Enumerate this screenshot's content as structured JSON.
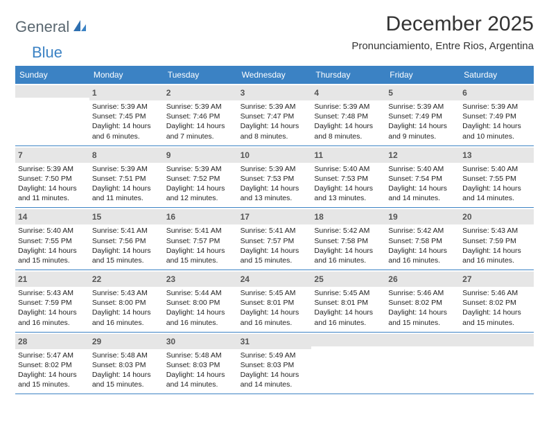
{
  "logo": {
    "part1": "General",
    "part2": "Blue"
  },
  "title": "December 2025",
  "subtitle": "Pronunciamiento, Entre Rios, Argentina",
  "colors": {
    "header_bg": "#3b82c4",
    "header_text": "#ffffff",
    "daynum_bg": "#e6e6e6",
    "rule": "#3b82c4",
    "logo_gray": "#5a6770",
    "logo_blue": "#3b82c4",
    "text": "#222222",
    "background": "#ffffff"
  },
  "day_names": [
    "Sunday",
    "Monday",
    "Tuesday",
    "Wednesday",
    "Thursday",
    "Friday",
    "Saturday"
  ],
  "weeks": [
    [
      {
        "n": "",
        "sr": "",
        "ss": "",
        "dl": ""
      },
      {
        "n": "1",
        "sr": "5:39 AM",
        "ss": "7:45 PM",
        "dl": "14 hours and 6 minutes."
      },
      {
        "n": "2",
        "sr": "5:39 AM",
        "ss": "7:46 PM",
        "dl": "14 hours and 7 minutes."
      },
      {
        "n": "3",
        "sr": "5:39 AM",
        "ss": "7:47 PM",
        "dl": "14 hours and 8 minutes."
      },
      {
        "n": "4",
        "sr": "5:39 AM",
        "ss": "7:48 PM",
        "dl": "14 hours and 8 minutes."
      },
      {
        "n": "5",
        "sr": "5:39 AM",
        "ss": "7:49 PM",
        "dl": "14 hours and 9 minutes."
      },
      {
        "n": "6",
        "sr": "5:39 AM",
        "ss": "7:49 PM",
        "dl": "14 hours and 10 minutes."
      }
    ],
    [
      {
        "n": "7",
        "sr": "5:39 AM",
        "ss": "7:50 PM",
        "dl": "14 hours and 11 minutes."
      },
      {
        "n": "8",
        "sr": "5:39 AM",
        "ss": "7:51 PM",
        "dl": "14 hours and 11 minutes."
      },
      {
        "n": "9",
        "sr": "5:39 AM",
        "ss": "7:52 PM",
        "dl": "14 hours and 12 minutes."
      },
      {
        "n": "10",
        "sr": "5:39 AM",
        "ss": "7:53 PM",
        "dl": "14 hours and 13 minutes."
      },
      {
        "n": "11",
        "sr": "5:40 AM",
        "ss": "7:53 PM",
        "dl": "14 hours and 13 minutes."
      },
      {
        "n": "12",
        "sr": "5:40 AM",
        "ss": "7:54 PM",
        "dl": "14 hours and 14 minutes."
      },
      {
        "n": "13",
        "sr": "5:40 AM",
        "ss": "7:55 PM",
        "dl": "14 hours and 14 minutes."
      }
    ],
    [
      {
        "n": "14",
        "sr": "5:40 AM",
        "ss": "7:55 PM",
        "dl": "14 hours and 15 minutes."
      },
      {
        "n": "15",
        "sr": "5:41 AM",
        "ss": "7:56 PM",
        "dl": "14 hours and 15 minutes."
      },
      {
        "n": "16",
        "sr": "5:41 AM",
        "ss": "7:57 PM",
        "dl": "14 hours and 15 minutes."
      },
      {
        "n": "17",
        "sr": "5:41 AM",
        "ss": "7:57 PM",
        "dl": "14 hours and 15 minutes."
      },
      {
        "n": "18",
        "sr": "5:42 AM",
        "ss": "7:58 PM",
        "dl": "14 hours and 16 minutes."
      },
      {
        "n": "19",
        "sr": "5:42 AM",
        "ss": "7:58 PM",
        "dl": "14 hours and 16 minutes."
      },
      {
        "n": "20",
        "sr": "5:43 AM",
        "ss": "7:59 PM",
        "dl": "14 hours and 16 minutes."
      }
    ],
    [
      {
        "n": "21",
        "sr": "5:43 AM",
        "ss": "7:59 PM",
        "dl": "14 hours and 16 minutes."
      },
      {
        "n": "22",
        "sr": "5:43 AM",
        "ss": "8:00 PM",
        "dl": "14 hours and 16 minutes."
      },
      {
        "n": "23",
        "sr": "5:44 AM",
        "ss": "8:00 PM",
        "dl": "14 hours and 16 minutes."
      },
      {
        "n": "24",
        "sr": "5:45 AM",
        "ss": "8:01 PM",
        "dl": "14 hours and 16 minutes."
      },
      {
        "n": "25",
        "sr": "5:45 AM",
        "ss": "8:01 PM",
        "dl": "14 hours and 16 minutes."
      },
      {
        "n": "26",
        "sr": "5:46 AM",
        "ss": "8:02 PM",
        "dl": "14 hours and 15 minutes."
      },
      {
        "n": "27",
        "sr": "5:46 AM",
        "ss": "8:02 PM",
        "dl": "14 hours and 15 minutes."
      }
    ],
    [
      {
        "n": "28",
        "sr": "5:47 AM",
        "ss": "8:02 PM",
        "dl": "14 hours and 15 minutes."
      },
      {
        "n": "29",
        "sr": "5:48 AM",
        "ss": "8:03 PM",
        "dl": "14 hours and 15 minutes."
      },
      {
        "n": "30",
        "sr": "5:48 AM",
        "ss": "8:03 PM",
        "dl": "14 hours and 14 minutes."
      },
      {
        "n": "31",
        "sr": "5:49 AM",
        "ss": "8:03 PM",
        "dl": "14 hours and 14 minutes."
      },
      {
        "n": "",
        "sr": "",
        "ss": "",
        "dl": ""
      },
      {
        "n": "",
        "sr": "",
        "ss": "",
        "dl": ""
      },
      {
        "n": "",
        "sr": "",
        "ss": "",
        "dl": ""
      }
    ]
  ],
  "labels": {
    "sunrise": "Sunrise:",
    "sunset": "Sunset:",
    "daylight": "Daylight:"
  }
}
